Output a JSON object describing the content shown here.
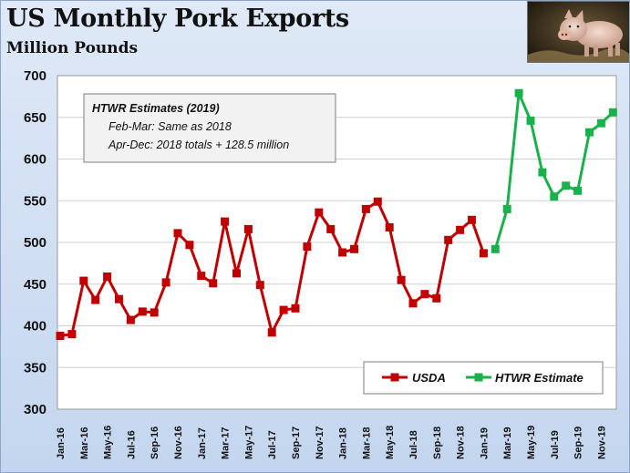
{
  "title": "US Monthly Pork Exports",
  "subtitle": "Million Pounds",
  "photo": {
    "subject": "pig-icon"
  },
  "colors": {
    "usda": "#c00000",
    "htwr": "#19b14b",
    "background_top": "#dfe9f7",
    "background_bottom": "#c4d6ef",
    "plot_bg": "#ffffff"
  },
  "chart_data": {
    "type": "line",
    "title": "US Monthly Pork Exports",
    "ylabel": "Million Pounds",
    "ylim": [
      300,
      700
    ],
    "yticks": [
      300,
      350,
      400,
      450,
      500,
      550,
      600,
      650,
      700
    ],
    "grid": "horizontal",
    "legend_position": "bottom-right",
    "x_tick_labels": [
      "Jan-16",
      "Mar-16",
      "May-16",
      "Jul-16",
      "Sep-16",
      "Nov-16",
      "Jan-17",
      "Mar-17",
      "May-17",
      "Jul-17",
      "Sep-17",
      "Nov-17",
      "Jan-18",
      "Mar-18",
      "May-18",
      "Jul-18",
      "Sep-18",
      "Nov-18",
      "Jan-19",
      "Mar-19",
      "May-19",
      "Jul-19",
      "Sep-19",
      "Nov-19"
    ],
    "months": [
      "Jan-16",
      "Feb-16",
      "Mar-16",
      "Apr-16",
      "May-16",
      "Jun-16",
      "Jul-16",
      "Aug-16",
      "Sep-16",
      "Oct-16",
      "Nov-16",
      "Dec-16",
      "Jan-17",
      "Feb-17",
      "Mar-17",
      "Apr-17",
      "May-17",
      "Jun-17",
      "Jul-17",
      "Aug-17",
      "Sep-17",
      "Oct-17",
      "Nov-17",
      "Dec-17",
      "Jan-18",
      "Feb-18",
      "Mar-18",
      "Apr-18",
      "May-18",
      "Jun-18",
      "Jul-18",
      "Aug-18",
      "Sep-18",
      "Oct-18",
      "Nov-18",
      "Dec-18",
      "Jan-19",
      "Feb-19",
      "Mar-19",
      "Apr-19",
      "May-19",
      "Jun-19",
      "Jul-19",
      "Aug-19",
      "Sep-19",
      "Oct-19",
      "Nov-19",
      "Dec-19"
    ],
    "series": [
      {
        "name": "USDA",
        "start": "Jan-16",
        "values": [
          388,
          390,
          454,
          431,
          459,
          432,
          407,
          417,
          416,
          452,
          511,
          497,
          460,
          451,
          525,
          463,
          516,
          449,
          392,
          419,
          421,
          495,
          536,
          516,
          488,
          492,
          540,
          549,
          518,
          455,
          427,
          438,
          433,
          503,
          515,
          527,
          487
        ]
      },
      {
        "name": "HTWR Estimate",
        "start": "Feb-19",
        "values": [
          492,
          540,
          679,
          646,
          584,
          555,
          568,
          562,
          632,
          643,
          656
        ]
      }
    ],
    "annotation": {
      "title": "HTWR Estimates (2019)",
      "lines": [
        "Feb-Mar: Same as 2018",
        "Apr-Dec: 2018 totals + 128.5 million"
      ]
    }
  }
}
